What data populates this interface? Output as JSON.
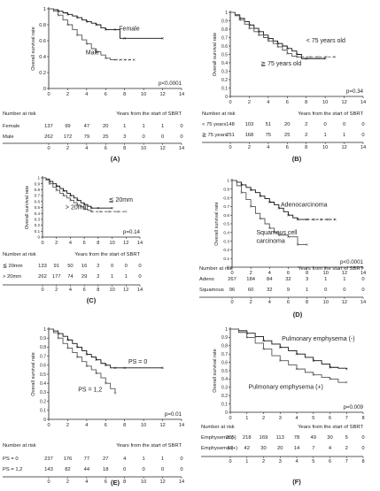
{
  "chart_data": [
    {
      "type": "line",
      "panel": "(A)",
      "ylabel": "Overall survival rate",
      "xlabel": "Years from the start of SBRT",
      "xlim": [
        0,
        14
      ],
      "ylim": [
        0,
        1
      ],
      "xticks": [
        0,
        2,
        4,
        6,
        8,
        10,
        12,
        14
      ],
      "yticks": [
        0,
        0.2,
        0.4,
        0.6,
        0.8,
        1
      ],
      "ytick_labels": [
        "0",
        "0.2",
        "0.4",
        "0.6",
        "0.8",
        "1"
      ],
      "p_value": "p<0.0001",
      "series": [
        {
          "name": "Female",
          "color": "#111111",
          "dash": "",
          "x": [
            0,
            0.5,
            1,
            1.5,
            2,
            2.5,
            3,
            3.5,
            4,
            4.5,
            5,
            5.5,
            6,
            6.5,
            7,
            7.5,
            8,
            10,
            12
          ],
          "y": [
            1,
            0.99,
            0.97,
            0.95,
            0.93,
            0.91,
            0.89,
            0.86,
            0.84,
            0.82,
            0.8,
            0.76,
            0.74,
            0.74,
            0.74,
            0.63,
            0.63,
            0.63,
            0.63
          ]
        },
        {
          "name": "Male",
          "color": "#555555",
          "dash": "",
          "x": [
            0,
            0.5,
            1,
            1.5,
            2,
            2.5,
            3,
            3.5,
            4,
            4.5,
            5,
            5.5,
            6,
            6.5,
            7
          ],
          "y": [
            1,
            0.97,
            0.92,
            0.86,
            0.8,
            0.74,
            0.67,
            0.61,
            0.56,
            0.5,
            0.46,
            0.42,
            0.38,
            0.36,
            0.36
          ]
        },
        {
          "name": "",
          "color": "#555555",
          "dash": "3,2",
          "x": [
            7,
            9
          ],
          "y": [
            0.36,
            0.36
          ]
        }
      ],
      "annotations": [
        {
          "text": "Female",
          "x": 7.4,
          "y": 0.73
        },
        {
          "text": "Male",
          "x": 3.9,
          "y": 0.43
        }
      ],
      "risk_table": {
        "title": "Number at risk",
        "rows": [
          {
            "label": "Female",
            "values": [
              "137",
              "99",
              "47",
              "20",
              "1",
              "1",
              "1",
              "0"
            ]
          },
          {
            "label": "Male",
            "values": [
              "262",
              "172",
              "79",
              "25",
              "3",
              "0",
              "0",
              "0"
            ]
          }
        ]
      }
    },
    {
      "type": "line",
      "panel": "(B)",
      "ylabel": "Overall survival rate",
      "xlabel": "Years from the start of SBRT",
      "xlim": [
        0,
        14
      ],
      "ylim": [
        0,
        1
      ],
      "xticks": [
        0,
        2,
        4,
        6,
        8,
        10,
        12,
        14
      ],
      "yticks": [
        0,
        0.1,
        0.2,
        0.3,
        0.4,
        0.5,
        0.6,
        0.7,
        0.8,
        0.9,
        1
      ],
      "ytick_labels": [
        "0",
        "0.1",
        "0.2",
        "0.3",
        "0.4",
        "0.5",
        "0.6",
        "0.7",
        "0.8",
        "0.9",
        "1"
      ],
      "p_value": "p=0.34",
      "series": [
        {
          "name": "< 75 years old",
          "color": "#111111",
          "dash": "",
          "x": [
            0,
            0.5,
            1,
            1.5,
            2,
            2.5,
            3,
            3.5,
            4,
            4.5,
            5,
            5.5,
            6,
            6.5,
            7,
            7.5,
            8,
            9,
            10
          ],
          "y": [
            1,
            0.97,
            0.93,
            0.89,
            0.85,
            0.81,
            0.77,
            0.73,
            0.69,
            0.66,
            0.63,
            0.6,
            0.57,
            0.54,
            0.5,
            0.45,
            0.45,
            0.45,
            0.45
          ]
        },
        {
          "name": "≧ 75 years old",
          "color": "#555555",
          "dash": "",
          "x": [
            0,
            0.5,
            1,
            1.5,
            2,
            2.5,
            3,
            3.5,
            4,
            4.5,
            5,
            5.5,
            6,
            6.5,
            7,
            7.5
          ],
          "y": [
            1,
            0.96,
            0.91,
            0.86,
            0.81,
            0.77,
            0.73,
            0.7,
            0.66,
            0.63,
            0.59,
            0.55,
            0.51,
            0.48,
            0.47,
            0.47
          ]
        },
        {
          "name": "",
          "color": "#555555",
          "dash": "3,2",
          "x": [
            7.5,
            11
          ],
          "y": [
            0.47,
            0.47
          ]
        }
      ],
      "annotations": [
        {
          "text": "< 75 years old",
          "x": 8.0,
          "y": 0.64
        },
        {
          "text": "≧ 75 years old",
          "x": 3.2,
          "y": 0.37
        }
      ],
      "risk_table": {
        "title": "Number at risk",
        "rows": [
          {
            "label": "< 75 years",
            "values": [
              "148",
              "103",
              "51",
              "20",
              "2",
              "0",
              "0",
              "0"
            ]
          },
          {
            "label": "≧ 75 years",
            "values": [
              "251",
              "168",
              "75",
              "25",
              "2",
              "1",
              "1",
              "0"
            ]
          }
        ]
      }
    },
    {
      "type": "line",
      "panel": "(C)",
      "ylabel": "Overall survival rate",
      "xlabel": "Years from the start of SBRT",
      "xlim": [
        0,
        14
      ],
      "ylim": [
        0,
        1
      ],
      "xticks": [
        0,
        2,
        4,
        6,
        8,
        10,
        12,
        14
      ],
      "yticks": [
        0,
        0.1,
        0.2,
        0.3,
        0.4,
        0.5,
        0.6,
        0.7,
        0.8,
        0.9,
        1
      ],
      "ytick_labels": [
        "0",
        "0.1",
        "0.2",
        "0.3",
        "0.4",
        "0.5",
        "0.6",
        "0.7",
        "0.8",
        "0.9",
        "1"
      ],
      "p_value": "p=0.14",
      "series": [
        {
          "name": "≦ 20mm",
          "color": "#111111",
          "dash": "",
          "x": [
            0,
            0.5,
            1,
            1.5,
            2,
            2.5,
            3,
            3.5,
            4,
            4.5,
            5,
            5.5,
            6,
            6.5,
            7,
            7.5,
            8,
            9,
            10
          ],
          "y": [
            1,
            0.98,
            0.94,
            0.9,
            0.86,
            0.82,
            0.78,
            0.74,
            0.7,
            0.66,
            0.62,
            0.58,
            0.55,
            0.52,
            0.49,
            0.49,
            0.49,
            0.49,
            0.49
          ]
        },
        {
          "name": "> 20mm",
          "color": "#555555",
          "dash": "",
          "x": [
            0,
            0.5,
            1,
            1.5,
            2,
            2.5,
            3,
            3.5,
            4,
            4.5,
            5,
            5.5,
            6,
            6.5,
            7
          ],
          "y": [
            1,
            0.96,
            0.9,
            0.84,
            0.79,
            0.74,
            0.7,
            0.66,
            0.62,
            0.58,
            0.54,
            0.51,
            0.47,
            0.45,
            0.43
          ]
        },
        {
          "name": "",
          "color": "#555555",
          "dash": "3,2",
          "x": [
            7,
            12
          ],
          "y": [
            0.43,
            0.43
          ]
        }
      ],
      "annotations": [
        {
          "text": "≦ 20mm",
          "x": 9.5,
          "y": 0.6
        },
        {
          "text": "> 20mm",
          "x": 3.3,
          "y": 0.47
        }
      ],
      "risk_table": {
        "title": "Number at risk",
        "rows": [
          {
            "label": "≦ 20mm",
            "values": [
              "133",
              "91",
              "50",
              "16",
              "2",
              "0",
              "0",
              "0"
            ]
          },
          {
            "label": "> 20mm",
            "values": [
              "262",
              "177",
              "74",
              "29",
              "2",
              "1",
              "1",
              "0"
            ]
          }
        ]
      }
    },
    {
      "type": "line",
      "panel": "(D)",
      "ylabel": "Overall survival rate",
      "xlabel": "Years from the start of SBRT",
      "xlim": [
        0,
        14
      ],
      "ylim": [
        0,
        1
      ],
      "xticks": [
        0,
        2,
        4,
        6,
        8,
        10,
        12,
        14
      ],
      "yticks": [
        0,
        0.1,
        0.2,
        0.3,
        0.4,
        0.5,
        0.6,
        0.7,
        0.8,
        0.9,
        1
      ],
      "ytick_labels": [
        "0",
        "0.1",
        "0.2",
        "0.3",
        "0.4",
        "0.5",
        "0.6",
        "0.7",
        "0.8",
        "0.9",
        "1"
      ],
      "p_value": "p<0.0001",
      "series": [
        {
          "name": "Adenocarcinoma",
          "color": "#111111",
          "dash": "",
          "x": [
            0,
            0.5,
            1,
            1.5,
            2,
            2.5,
            3,
            3.5,
            4,
            4.5,
            5,
            5.5,
            6,
            6.5,
            7,
            7.5,
            8
          ],
          "y": [
            1,
            0.98,
            0.95,
            0.92,
            0.89,
            0.86,
            0.82,
            0.79,
            0.75,
            0.72,
            0.68,
            0.64,
            0.6,
            0.57,
            0.55,
            0.55,
            0.55
          ]
        },
        {
          "name": "",
          "color": "#111111",
          "dash": "3,2",
          "x": [
            8,
            11
          ],
          "y": [
            0.55,
            0.55
          ]
        },
        {
          "name": "Squamous cell carcinoma",
          "color": "#555555",
          "dash": "",
          "x": [
            0,
            0.5,
            1,
            1.5,
            2,
            2.5,
            3,
            3.5,
            4,
            4.5,
            5,
            5.5,
            6,
            6.5,
            7,
            7.5,
            8
          ],
          "y": [
            1,
            0.94,
            0.86,
            0.78,
            0.7,
            0.62,
            0.56,
            0.5,
            0.45,
            0.4,
            0.37,
            0.37,
            0.35,
            0.35,
            0.26,
            0.26,
            0.26
          ]
        }
      ],
      "annotations": [
        {
          "text": "Adenocarcinoma",
          "x": 5.2,
          "y": 0.7
        },
        {
          "text": "Squamous cell",
          "x": 2.6,
          "y": 0.38
        },
        {
          "text": "carcinoma",
          "x": 2.6,
          "y": 0.28
        }
      ],
      "risk_table": {
        "title": "Number at risk",
        "rows": [
          {
            "label": "Adeno",
            "values": [
              "267",
              "184",
              "84",
              "32",
              "3",
              "1",
              "1",
              "0"
            ]
          },
          {
            "label": "Squamous",
            "values": [
              "96",
              "60",
              "32",
              "9",
              "1",
              "0",
              "0",
              "0"
            ]
          }
        ]
      }
    },
    {
      "type": "line",
      "panel": "(E)",
      "ylabel": "Overall survival rate",
      "xlabel": "Years from the start of SBRT",
      "xlim": [
        0,
        14
      ],
      "ylim": [
        0,
        1
      ],
      "xticks": [
        0,
        2,
        4,
        6,
        8,
        10,
        12,
        14
      ],
      "yticks": [
        0,
        0.1,
        0.2,
        0.3,
        0.4,
        0.5,
        0.6,
        0.7,
        0.8,
        0.9,
        1
      ],
      "ytick_labels": [
        "0",
        "0.1",
        "0.2",
        "0.3",
        "0.4",
        "0.5",
        "0.6",
        "0.7",
        "0.8",
        "0.9",
        "1"
      ],
      "p_value": "p=0.01",
      "series": [
        {
          "name": "PS = 0",
          "color": "#111111",
          "dash": "",
          "x": [
            0,
            0.5,
            1,
            1.5,
            2,
            2.5,
            3,
            3.5,
            4,
            4.5,
            5,
            5.5,
            6,
            6.5,
            7,
            7.5,
            8,
            10,
            12
          ],
          "y": [
            1,
            0.98,
            0.95,
            0.92,
            0.88,
            0.84,
            0.8,
            0.76,
            0.72,
            0.69,
            0.66,
            0.62,
            0.6,
            0.57,
            0.57,
            0.57,
            0.57,
            0.57,
            0.57
          ]
        },
        {
          "name": "PS = 1,2",
          "color": "#555555",
          "dash": "",
          "x": [
            0,
            0.5,
            1,
            1.5,
            2,
            2.5,
            3,
            3.5,
            4,
            4.5,
            5,
            5.5,
            6,
            6.5,
            7
          ],
          "y": [
            1,
            0.96,
            0.9,
            0.84,
            0.79,
            0.74,
            0.69,
            0.64,
            0.59,
            0.55,
            0.51,
            0.46,
            0.4,
            0.34,
            0.29
          ]
        }
      ],
      "annotations": [
        {
          "text": "PS = 0",
          "x": 8.4,
          "y": 0.62
        },
        {
          "text": "PS = 1,2",
          "x": 3.1,
          "y": 0.31
        }
      ],
      "risk_table": {
        "title": "Number at risk",
        "rows": [
          {
            "label": "PS = 0",
            "values": [
              "237",
              "176",
              "77",
              "27",
              "4",
              "1",
              "1",
              "0"
            ]
          },
          {
            "label": "PS = 1,2",
            "values": [
              "143",
              "82",
              "44",
              "18",
              "0",
              "0",
              "0",
              "0"
            ]
          }
        ]
      }
    },
    {
      "type": "line",
      "panel": "(F)",
      "ylabel": "Overall survival rate",
      "xlabel": "Years from the start of SBRT",
      "xlim": [
        0,
        8
      ],
      "ylim": [
        0,
        1
      ],
      "xticks": [
        0,
        1,
        2,
        3,
        4,
        5,
        6,
        7,
        8
      ],
      "yticks": [
        0,
        0.1,
        0.2,
        0.3,
        0.4,
        0.5,
        0.6,
        0.7,
        0.8,
        0.9,
        1
      ],
      "ytick_labels": [
        "0",
        "0.1",
        "0.2",
        "0.3",
        "0.4",
        "0.5",
        "0.6",
        "0.7",
        "0.8",
        "0.9",
        "1"
      ],
      "p_value": "p=0.009",
      "series": [
        {
          "name": "Pulmonary emphysema (-)",
          "color": "#111111",
          "dash": "",
          "x": [
            0,
            0.5,
            1,
            1.5,
            2,
            2.5,
            3,
            3.5,
            4,
            4.5,
            5,
            5.5,
            6,
            6.5,
            7
          ],
          "y": [
            1,
            0.98,
            0.95,
            0.91,
            0.86,
            0.82,
            0.78,
            0.74,
            0.7,
            0.66,
            0.62,
            0.58,
            0.54,
            0.53,
            0.52
          ]
        },
        {
          "name": "Pulmonary emphysema (+)",
          "color": "#555555",
          "dash": "",
          "x": [
            0,
            0.5,
            1,
            1.5,
            2,
            2.5,
            3,
            3.5,
            4,
            4.5,
            5,
            5.5,
            6,
            6.5,
            7
          ],
          "y": [
            1,
            0.96,
            0.9,
            0.83,
            0.76,
            0.68,
            0.62,
            0.57,
            0.52,
            0.48,
            0.45,
            0.42,
            0.4,
            0.36,
            0.36
          ]
        }
      ],
      "annotations": [
        {
          "text": "Pulmonary emphysema (-)",
          "x": 3.1,
          "y": 0.86
        },
        {
          "text": "Pulmonary emphysema (+)",
          "x": 1.1,
          "y": 0.28
        }
      ],
      "risk_table": {
        "title": "Number at risk",
        "rows": [
          {
            "label": "Emphysema (-)",
            "values": [
              "255",
              "218",
              "169",
              "113",
              "78",
              "49",
              "30",
              "5",
              "0"
            ]
          },
          {
            "label": "Emphysema (+)",
            "values": [
              "50",
              "42",
              "30",
              "20",
              "14",
              "7",
              "4",
              "2",
              "0"
            ]
          }
        ]
      }
    }
  ]
}
